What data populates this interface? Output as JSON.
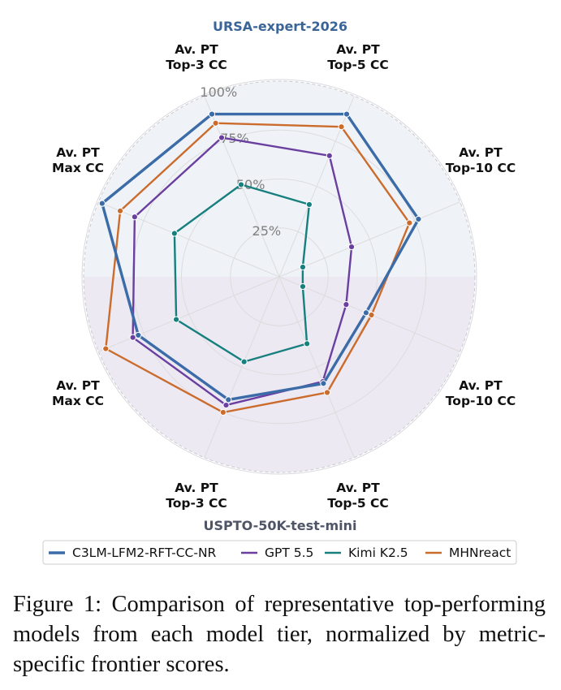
{
  "chart_data": {
    "type": "radar",
    "title_top": "URSA-expert-2026",
    "title_bottom": "USPTO-50K-test-mini",
    "axes": [
      [
        "Av. PT",
        "Top-3 CC"
      ],
      [
        "Av. PT",
        "Top-5 CC"
      ],
      [
        "Av. PT",
        "Top-10 CC"
      ],
      [
        "Av. PT",
        "Top-10 CC"
      ],
      [
        "Av. PT",
        "Top-5 CC"
      ],
      [
        "Av. PT",
        "Top-3 CC"
      ],
      [
        "Av. PT",
        "Max CC"
      ],
      [
        "Av. PT",
        "Max CC"
      ]
    ],
    "radial_ticks": [
      "25%",
      "50%",
      "75%",
      "100%"
    ],
    "rlim": [
      0,
      100
    ],
    "series": [
      {
        "name": "C3LM-LFM2-RFT-CC-NR",
        "color": "#3b6ca8",
        "values": [
          90,
          90,
          77,
          48,
          59,
          68,
          78,
          98
        ]
      },
      {
        "name": "GPT 5.5",
        "color": "#6a3fa0",
        "values": [
          77,
          67,
          40,
          37,
          58,
          71,
          81,
          80
        ]
      },
      {
        "name": "Kimi K2.5",
        "color": "#17807e",
        "values": [
          51,
          40,
          13,
          13,
          37,
          47,
          57,
          58
        ]
      },
      {
        "name": "MHNreact",
        "color": "#cb6b2c",
        "values": [
          85,
          83,
          72,
          51,
          64,
          75,
          96,
          88
        ]
      }
    ],
    "top_half_color": "#eff3f8",
    "bottom_half_color": "#ede9f3"
  },
  "caption": "Figure 1: Comparison of representative top-performing models from each model tier, normalized by metric-specific frontier scores."
}
